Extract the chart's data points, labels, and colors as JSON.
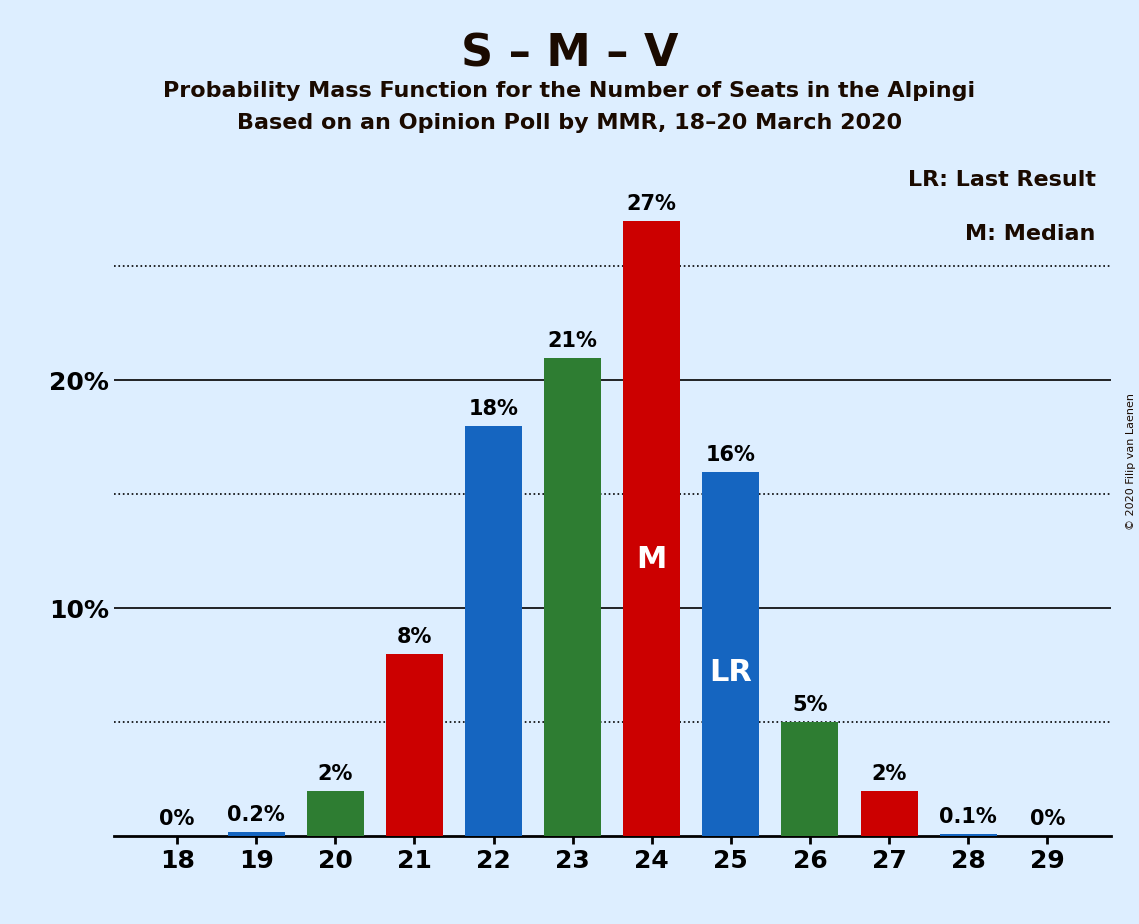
{
  "seats": [
    18,
    19,
    20,
    21,
    22,
    23,
    24,
    25,
    26,
    27,
    28,
    29
  ],
  "values": [
    0.0,
    0.2,
    2.0,
    8.0,
    18.0,
    21.0,
    27.0,
    16.0,
    5.0,
    2.0,
    0.1,
    0.0
  ],
  "colors": [
    "#1565C0",
    "#1565C0",
    "#2E7D32",
    "#CC0000",
    "#1565C0",
    "#2E7D32",
    "#CC0000",
    "#1565C0",
    "#2E7D32",
    "#CC0000",
    "#1565C0",
    "#1565C0"
  ],
  "bar_labels": [
    "0%",
    "0.2%",
    "2%",
    "8%",
    "18%",
    "21%",
    "27%",
    "16%",
    "5%",
    "2%",
    "0.1%",
    "0%"
  ],
  "median_seat": 24,
  "lr_seat": 25,
  "title": "S – M – V",
  "subtitle1": "Probability Mass Function for the Number of Seats in the Alpingi",
  "subtitle2": "Based on an Opinion Poll by MMR, 18–20 March 2020",
  "legend_lr": "LR: Last Result",
  "legend_m": "M: Median",
  "solid_grid": [
    10,
    20
  ],
  "dotted_grid": [
    5,
    15,
    25
  ],
  "ytick_positions": [
    10,
    20
  ],
  "ytick_labels": [
    "10%",
    "20%"
  ],
  "ylim": [
    0,
    30
  ],
  "background_color": "#DDEEFF",
  "copyright": "© 2020 Filip van Laenen",
  "bar_width": 0.72,
  "title_fontsize": 32,
  "subtitle_fontsize": 16,
  "tick_fontsize": 18,
  "label_fontsize": 15,
  "legend_fontsize": 16,
  "inner_label_fontsize": 22
}
